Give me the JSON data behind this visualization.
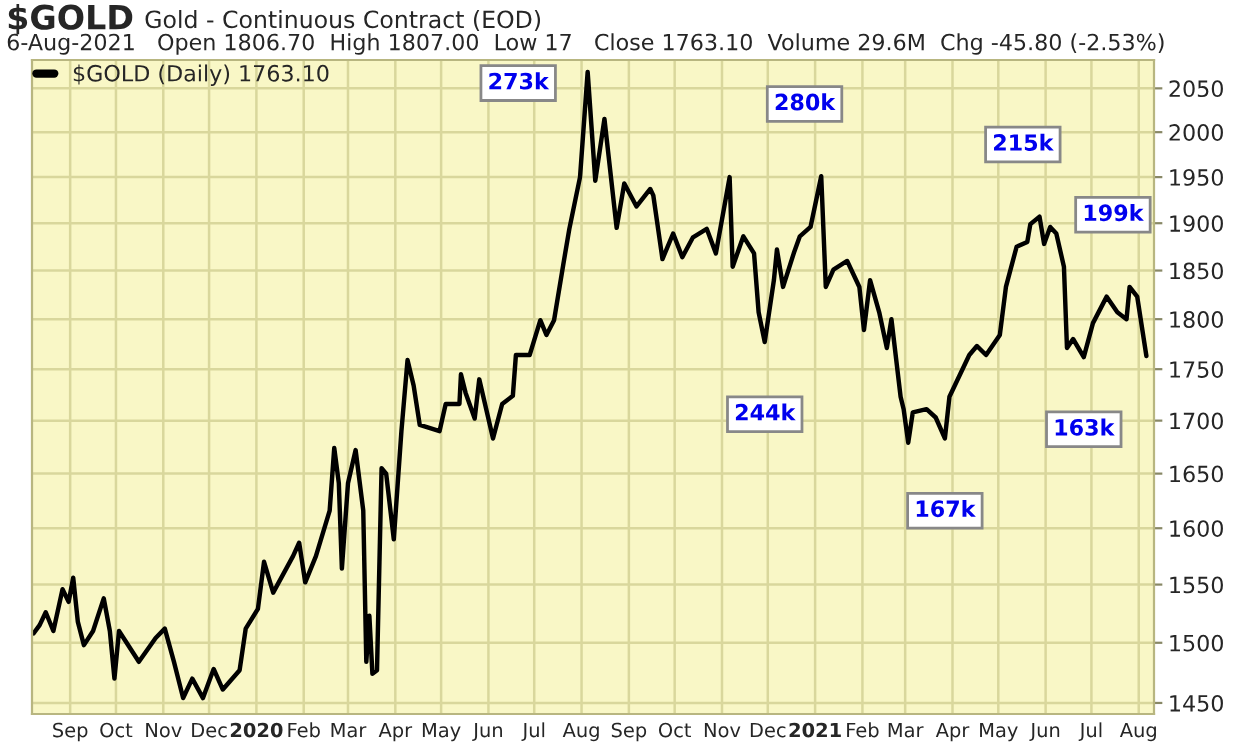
{
  "chart_data": {
    "type": "line",
    "title": "$GOLD",
    "subtitle": "Gold - Continuous Contract (EOD)",
    "annotations": [
      "6-Aug-2021   Open 1806.70  High 1807.00  Low 17   Close 1763.10  Volume 29.6M  Chg -45.80 (-2.53%)",
      {
        "text": "273k",
        "x": "2020-08-05",
        "y": 2069
      },
      {
        "text": "280k",
        "x": "2021-01-05",
        "y": 1951
      },
      {
        "text": "244k",
        "x": "2020-11-29",
        "y": 1777
      },
      {
        "text": "167k",
        "x": "2021-03-27",
        "y": 1683
      },
      {
        "text": "215k",
        "x": "2021-05-28",
        "y": 1907
      },
      {
        "text": "163k",
        "x": "2021-06-26",
        "y": 1762
      },
      {
        "text": "199k",
        "x": "2021-07-26",
        "y": 1833
      }
    ],
    "x": [
      "2019-08-08",
      "2019-08-12",
      "2019-08-16",
      "2019-08-21",
      "2019-08-27",
      "2019-08-31",
      "2019-09-03",
      "2019-09-06",
      "2019-09-10",
      "2019-09-16",
      "2019-09-23",
      "2019-09-27",
      "2019-09-30",
      "2019-10-03",
      "2019-10-12",
      "2019-10-16",
      "2019-10-27",
      "2019-11-02",
      "2019-11-08",
      "2019-11-14",
      "2019-11-20",
      "2019-11-27",
      "2019-12-04",
      "2019-12-10",
      "2019-12-21",
      "2019-12-25",
      "2020-01-02",
      "2020-01-06",
      "2020-01-12",
      "2020-01-25",
      "2020-01-29",
      "2020-02-02",
      "2020-02-09",
      "2020-02-18",
      "2020-02-21",
      "2020-02-24",
      "2020-02-26",
      "2020-03-01",
      "2020-03-06",
      "2020-03-11",
      "2020-03-13",
      "2020-03-15",
      "2020-03-17",
      "2020-03-20",
      "2020-03-23",
      "2020-03-26",
      "2020-03-31",
      "2020-04-05",
      "2020-04-09",
      "2020-04-13",
      "2020-04-17",
      "2020-04-30",
      "2020-05-04",
      "2020-05-13",
      "2020-05-14",
      "2020-05-17",
      "2020-05-23",
      "2020-05-26",
      "2020-06-04",
      "2020-06-10",
      "2020-06-17",
      "2020-06-19",
      "2020-06-28",
      "2020-07-05",
      "2020-07-09",
      "2020-07-14",
      "2020-07-20",
      "2020-07-24",
      "2020-07-31",
      "2020-08-05",
      "2020-08-10",
      "2020-08-16",
      "2020-08-24",
      "2020-08-29",
      "2020-09-06",
      "2020-09-15",
      "2020-09-17",
      "2020-09-23",
      "2020-09-30",
      "2020-10-06",
      "2020-10-13",
      "2020-10-22",
      "2020-10-28",
      "2020-11-06",
      "2020-11-08",
      "2020-11-15",
      "2020-11-22",
      "2020-11-25",
      "2020-11-29",
      "2020-12-05",
      "2020-12-07",
      "2020-12-11",
      "2020-12-18",
      "2020-12-22",
      "2020-12-29",
      "2021-01-05",
      "2021-01-08",
      "2021-01-13",
      "2021-01-22",
      "2021-01-30",
      "2021-02-02",
      "2021-02-06",
      "2021-02-12",
      "2021-02-17",
      "2021-02-20",
      "2021-02-26",
      "2021-02-28",
      "2021-03-03",
      "2021-03-06",
      "2021-03-15",
      "2021-03-21",
      "2021-03-27",
      "2021-03-30",
      "2021-04-06",
      "2021-04-12",
      "2021-04-17",
      "2021-04-23",
      "2021-05-02",
      "2021-05-06",
      "2021-05-13",
      "2021-05-20",
      "2021-05-22",
      "2021-05-28",
      "2021-05-31",
      "2021-06-04",
      "2021-06-08",
      "2021-06-13",
      "2021-06-15",
      "2021-06-19",
      "2021-06-26",
      "2021-07-02",
      "2021-07-11",
      "2021-07-18",
      "2021-07-24",
      "2021-07-26",
      "2021-07-31",
      "2021-08-06"
    ],
    "series": [
      {
        "name": "$GOLD (Daily) 1763.10",
        "color": "#000000",
        "values": [
          1508,
          1515,
          1526,
          1510,
          1546,
          1535,
          1556,
          1518,
          1498,
          1510,
          1538,
          1510,
          1470,
          1510,
          1492,
          1484,
          1504,
          1512,
          1484,
          1454,
          1470,
          1454,
          1478,
          1461,
          1477,
          1512,
          1529,
          1570,
          1543,
          1575,
          1587,
          1552,
          1575,
          1616,
          1674,
          1641,
          1564,
          1641,
          1672,
          1616,
          1484,
          1523,
          1474,
          1477,
          1655,
          1650,
          1590,
          1690,
          1759,
          1734,
          1696,
          1690,
          1716,
          1716,
          1745,
          1727,
          1702,
          1740,
          1683,
          1716,
          1724,
          1764,
          1764,
          1799,
          1784,
          1799,
          1856,
          1894,
          1950,
          2069,
          1946,
          2015,
          1895,
          1943,
          1918,
          1937,
          1930,
          1862,
          1889,
          1864,
          1885,
          1894,
          1868,
          1950,
          1854,
          1886,
          1868,
          1807,
          1777,
          1840,
          1872,
          1833,
          1868,
          1886,
          1896,
          1951,
          1833,
          1851,
          1860,
          1833,
          1789,
          1840,
          1807,
          1771,
          1800,
          1723,
          1711,
          1679,
          1708,
          1711,
          1703,
          1683,
          1723,
          1745,
          1764,
          1773,
          1764,
          1784,
          1833,
          1875,
          1880,
          1899,
          1907,
          1878,
          1896,
          1889,
          1854,
          1771,
          1780,
          1762,
          1796,
          1823,
          1807,
          1800,
          1833,
          1823,
          1763.1
        ]
      }
    ],
    "log": "y",
    "ylim": [
      1441,
      2083
    ],
    "yticks": [
      1450,
      1500,
      1550,
      1600,
      1650,
      1700,
      1750,
      1800,
      1850,
      1900,
      1950,
      2000,
      2050
    ],
    "xlim": [
      "2019-08-07",
      "2021-08-11"
    ],
    "xticks": [
      {
        "value": "2019-09-01",
        "label": "Sep"
      },
      {
        "value": "2019-10-01",
        "label": "Oct"
      },
      {
        "value": "2019-11-01",
        "label": "Nov"
      },
      {
        "value": "2019-12-01",
        "label": "Dec"
      },
      {
        "value": "2020-01-01",
        "label": "2020"
      },
      {
        "value": "2020-02-01",
        "label": "Feb"
      },
      {
        "value": "2020-03-01",
        "label": "Mar"
      },
      {
        "value": "2020-04-01",
        "label": "Apr"
      },
      {
        "value": "2020-05-01",
        "label": "May"
      },
      {
        "value": "2020-06-01",
        "label": "Jun"
      },
      {
        "value": "2020-07-01",
        "label": "Jul"
      },
      {
        "value": "2020-08-01",
        "label": "Aug"
      },
      {
        "value": "2020-09-01",
        "label": "Sep"
      },
      {
        "value": "2020-10-01",
        "label": "Oct"
      },
      {
        "value": "2020-11-01",
        "label": "Nov"
      },
      {
        "value": "2020-12-01",
        "label": "Dec"
      },
      {
        "value": "2021-01-01",
        "label": "2021"
      },
      {
        "value": "2021-02-01",
        "label": "Feb"
      },
      {
        "value": "2021-03-01",
        "label": "Mar"
      },
      {
        "value": "2021-04-01",
        "label": "Apr"
      },
      {
        "value": "2021-05-01",
        "label": "May"
      },
      {
        "value": "2021-06-01",
        "label": "Jun"
      },
      {
        "value": "2021-07-01",
        "label": "Jul"
      },
      {
        "value": "2021-08-01",
        "label": "Aug"
      }
    ],
    "grid": true,
    "legend": "top left"
  }
}
